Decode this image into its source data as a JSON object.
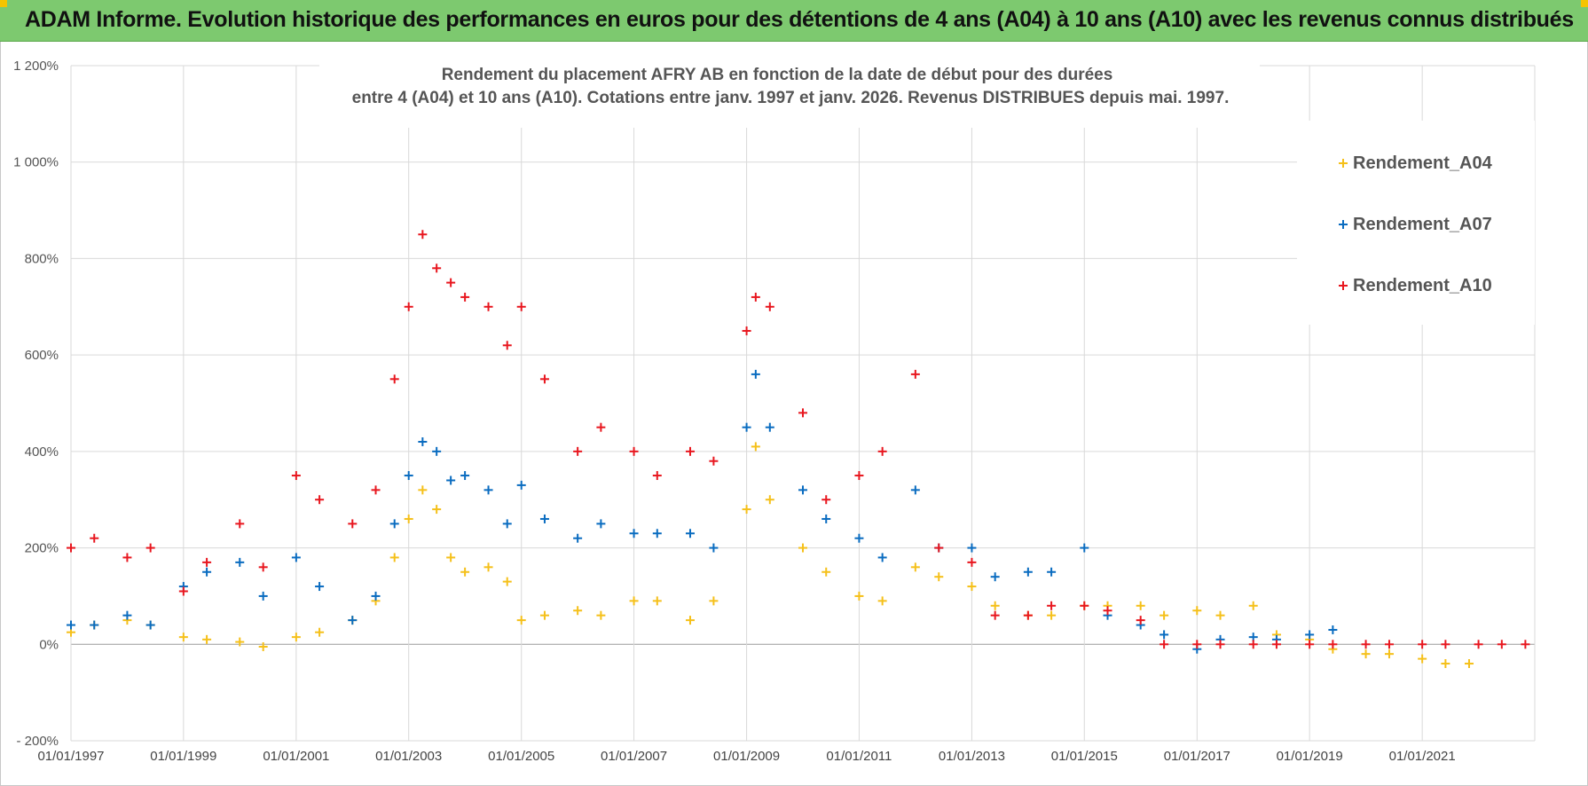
{
  "banner": {
    "title": "ADAM Informe. Evolution historique des performances en euros pour des détentions de 4 ans (A04) à 10 ans (A10) avec les revenus connus distribués"
  },
  "chart_data": {
    "type": "scatter",
    "title_line1": "Rendement du placement AFRY AB en fonction de la date de début pour des durées",
    "title_line2": "entre 4 (A04) et 10 ans (A10). Cotations entre janv. 1997 et janv. 2026. Revenus DISTRIBUES depuis mai. 1997.",
    "x_axis": {
      "type": "date",
      "min": "1997-01-01",
      "max": "2023-01-01",
      "tick_labels": [
        "01/01/1997",
        "01/01/1999",
        "01/01/2001",
        "01/01/2003",
        "01/01/2005",
        "01/01/2007",
        "01/01/2009",
        "01/01/2011",
        "01/01/2013",
        "01/01/2015",
        "01/01/2017",
        "01/01/2019",
        "01/01/2021"
      ]
    },
    "y_axis": {
      "min": -200,
      "max": 1200,
      "unit": "%",
      "tick_labels": [
        "1 200%",
        "1 000%",
        "800%",
        "600%",
        "400%",
        "200%",
        "0%",
        "- 200%"
      ]
    },
    "grid": true,
    "legend_position": "top-right",
    "marker": "+",
    "series": [
      {
        "name": "Rendement_A04",
        "color": "#f5c01a",
        "points": [
          [
            "1997-01-01",
            25
          ],
          [
            "1997-06-01",
            40
          ],
          [
            "1998-01-01",
            50
          ],
          [
            "1998-06-01",
            40
          ],
          [
            "1999-01-01",
            15
          ],
          [
            "1999-06-01",
            10
          ],
          [
            "2000-01-01",
            5
          ],
          [
            "2000-06-01",
            -5
          ],
          [
            "2001-01-01",
            15
          ],
          [
            "2001-06-01",
            25
          ],
          [
            "2002-01-01",
            50
          ],
          [
            "2002-06-01",
            90
          ],
          [
            "2002-10-01",
            180
          ],
          [
            "2003-01-01",
            260
          ],
          [
            "2003-04-01",
            320
          ],
          [
            "2003-07-01",
            280
          ],
          [
            "2003-10-01",
            180
          ],
          [
            "2004-01-01",
            150
          ],
          [
            "2004-06-01",
            160
          ],
          [
            "2004-10-01",
            130
          ],
          [
            "2005-01-01",
            50
          ],
          [
            "2005-06-01",
            60
          ],
          [
            "2006-01-01",
            70
          ],
          [
            "2006-06-01",
            60
          ],
          [
            "2007-01-01",
            90
          ],
          [
            "2007-06-01",
            90
          ],
          [
            "2008-01-01",
            50
          ],
          [
            "2008-06-01",
            90
          ],
          [
            "2009-01-01",
            280
          ],
          [
            "2009-03-01",
            410
          ],
          [
            "2009-06-01",
            300
          ],
          [
            "2010-01-01",
            200
          ],
          [
            "2010-06-01",
            150
          ],
          [
            "2011-01-01",
            100
          ],
          [
            "2011-06-01",
            90
          ],
          [
            "2012-01-01",
            160
          ],
          [
            "2012-06-01",
            140
          ],
          [
            "2013-01-01",
            120
          ],
          [
            "2013-06-01",
            80
          ],
          [
            "2014-01-01",
            60
          ],
          [
            "2014-06-01",
            60
          ],
          [
            "2015-01-01",
            80
          ],
          [
            "2015-06-01",
            80
          ],
          [
            "2016-01-01",
            80
          ],
          [
            "2016-06-01",
            60
          ],
          [
            "2017-01-01",
            70
          ],
          [
            "2017-06-01",
            60
          ],
          [
            "2018-01-01",
            80
          ],
          [
            "2018-06-01",
            20
          ],
          [
            "2019-01-01",
            10
          ],
          [
            "2019-06-01",
            -10
          ],
          [
            "2020-01-01",
            -20
          ],
          [
            "2020-06-01",
            -20
          ],
          [
            "2021-01-01",
            -30
          ],
          [
            "2021-06-01",
            -40
          ],
          [
            "2021-11-01",
            -40
          ]
        ]
      },
      {
        "name": "Rendement_A07",
        "color": "#0a6cc0",
        "points": [
          [
            "1997-01-01",
            40
          ],
          [
            "1997-06-01",
            40
          ],
          [
            "1998-01-01",
            60
          ],
          [
            "1998-06-01",
            40
          ],
          [
            "1999-01-01",
            120
          ],
          [
            "1999-06-01",
            150
          ],
          [
            "2000-01-01",
            170
          ],
          [
            "2000-06-01",
            100
          ],
          [
            "2001-01-01",
            180
          ],
          [
            "2001-06-01",
            120
          ],
          [
            "2002-01-01",
            50
          ],
          [
            "2002-06-01",
            100
          ],
          [
            "2002-10-01",
            250
          ],
          [
            "2003-01-01",
            350
          ],
          [
            "2003-04-01",
            420
          ],
          [
            "2003-07-01",
            400
          ],
          [
            "2003-10-01",
            340
          ],
          [
            "2004-01-01",
            350
          ],
          [
            "2004-06-01",
            320
          ],
          [
            "2004-10-01",
            250
          ],
          [
            "2005-01-01",
            330
          ],
          [
            "2005-06-01",
            260
          ],
          [
            "2006-01-01",
            220
          ],
          [
            "2006-06-01",
            250
          ],
          [
            "2007-01-01",
            230
          ],
          [
            "2007-06-01",
            230
          ],
          [
            "2008-01-01",
            230
          ],
          [
            "2008-06-01",
            200
          ],
          [
            "2009-01-01",
            450
          ],
          [
            "2009-03-01",
            560
          ],
          [
            "2009-06-01",
            450
          ],
          [
            "2010-01-01",
            320
          ],
          [
            "2010-06-01",
            260
          ],
          [
            "2011-01-01",
            220
          ],
          [
            "2011-06-01",
            180
          ],
          [
            "2012-01-01",
            320
          ],
          [
            "2012-06-01",
            200
          ],
          [
            "2013-01-01",
            200
          ],
          [
            "2013-06-01",
            140
          ],
          [
            "2014-01-01",
            150
          ],
          [
            "2014-06-01",
            150
          ],
          [
            "2015-01-01",
            200
          ],
          [
            "2015-06-01",
            60
          ],
          [
            "2016-01-01",
            40
          ],
          [
            "2016-06-01",
            20
          ],
          [
            "2017-01-01",
            -10
          ],
          [
            "2017-06-01",
            10
          ],
          [
            "2018-01-01",
            15
          ],
          [
            "2018-06-01",
            10
          ],
          [
            "2019-01-01",
            20
          ],
          [
            "2019-06-01",
            30
          ]
        ]
      },
      {
        "name": "Rendement_A10",
        "color": "#e8171f",
        "points": [
          [
            "1997-01-01",
            200
          ],
          [
            "1997-06-01",
            220
          ],
          [
            "1998-01-01",
            180
          ],
          [
            "1998-06-01",
            200
          ],
          [
            "1999-01-01",
            110
          ],
          [
            "1999-06-01",
            170
          ],
          [
            "2000-01-01",
            250
          ],
          [
            "2000-06-01",
            160
          ],
          [
            "2001-01-01",
            350
          ],
          [
            "2001-06-01",
            300
          ],
          [
            "2002-01-01",
            250
          ],
          [
            "2002-06-01",
            320
          ],
          [
            "2002-10-01",
            550
          ],
          [
            "2003-01-01",
            700
          ],
          [
            "2003-04-01",
            850
          ],
          [
            "2003-07-01",
            780
          ],
          [
            "2003-10-01",
            750
          ],
          [
            "2004-01-01",
            720
          ],
          [
            "2004-06-01",
            700
          ],
          [
            "2004-10-01",
            620
          ],
          [
            "2005-01-01",
            700
          ],
          [
            "2005-06-01",
            550
          ],
          [
            "2006-01-01",
            400
          ],
          [
            "2006-06-01",
            450
          ],
          [
            "2007-01-01",
            400
          ],
          [
            "2007-06-01",
            350
          ],
          [
            "2008-01-01",
            400
          ],
          [
            "2008-06-01",
            380
          ],
          [
            "2009-01-01",
            650
          ],
          [
            "2009-03-01",
            720
          ],
          [
            "2009-06-01",
            700
          ],
          [
            "2010-01-01",
            480
          ],
          [
            "2010-06-01",
            300
          ],
          [
            "2011-01-01",
            350
          ],
          [
            "2011-06-01",
            400
          ],
          [
            "2012-01-01",
            560
          ],
          [
            "2012-06-01",
            200
          ],
          [
            "2013-01-01",
            170
          ],
          [
            "2013-06-01",
            60
          ],
          [
            "2014-01-01",
            60
          ],
          [
            "2014-06-01",
            80
          ],
          [
            "2015-01-01",
            80
          ],
          [
            "2015-06-01",
            70
          ],
          [
            "2016-01-01",
            50
          ],
          [
            "2016-06-01",
            0
          ],
          [
            "2017-01-01",
            0
          ],
          [
            "2017-06-01",
            0
          ],
          [
            "2018-01-01",
            0
          ],
          [
            "2018-06-01",
            0
          ],
          [
            "2019-01-01",
            0
          ],
          [
            "2019-06-01",
            0
          ],
          [
            "2020-01-01",
            0
          ],
          [
            "2020-06-01",
            0
          ],
          [
            "2021-01-01",
            0
          ],
          [
            "2021-06-01",
            0
          ],
          [
            "2022-01-01",
            0
          ],
          [
            "2022-06-01",
            0
          ],
          [
            "2022-11-01",
            0
          ]
        ]
      }
    ]
  }
}
